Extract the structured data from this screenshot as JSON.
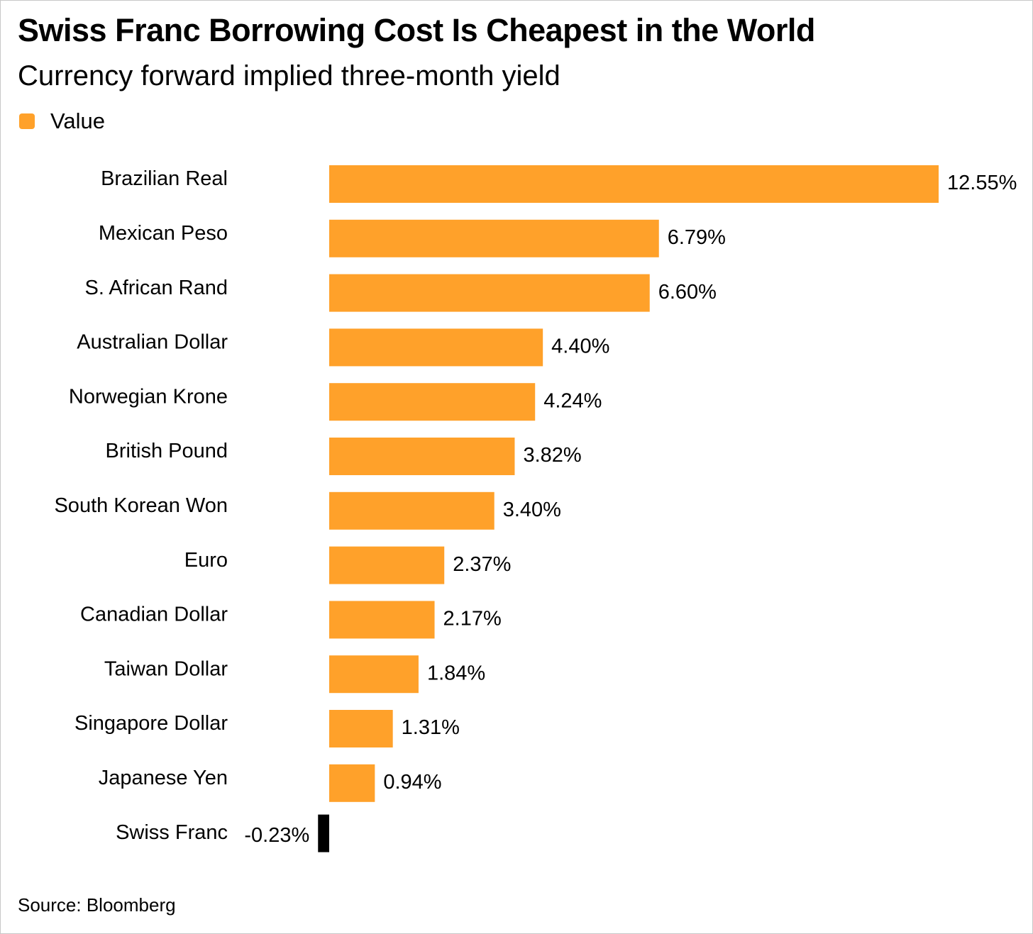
{
  "title": "Swiss Franc Borrowing Cost Is Cheapest in the World",
  "subtitle": "Currency forward implied three-month yield",
  "legend": {
    "label": "Value"
  },
  "source": "Source: Bloomberg",
  "colors": {
    "positive": "#ffa12a",
    "negative": "#000000"
  },
  "chart_data": {
    "type": "bar",
    "orientation": "horizontal",
    "title": "Swiss Franc Borrowing Cost Is Cheapest in the World",
    "subtitle": "Currency forward implied three-month yield",
    "legend_placement": "top-left",
    "grid": false,
    "categories": [
      "Brazilian Real",
      "Mexican Peso",
      "S. African Rand",
      "Australian Dollar",
      "Norwegian Krone",
      "British Pound",
      "South Korean Won",
      "Euro",
      "Canadian Dollar",
      "Taiwan Dollar",
      "Singapore Dollar",
      "Japanese Yen",
      "Swiss Franc"
    ],
    "series": [
      {
        "name": "Value",
        "values": [
          12.55,
          6.79,
          6.6,
          4.4,
          4.24,
          3.82,
          3.4,
          2.37,
          2.17,
          1.84,
          1.31,
          0.94,
          -0.23
        ]
      }
    ],
    "data_labels": [
      "12.55%",
      "6.79%",
      "6.60%",
      "4.40%",
      "4.24%",
      "3.82%",
      "3.40%",
      "2.37%",
      "2.17%",
      "1.84%",
      "1.31%",
      "0.94%",
      "-0.23%"
    ],
    "xlim": [
      -0.23,
      12.55
    ]
  }
}
